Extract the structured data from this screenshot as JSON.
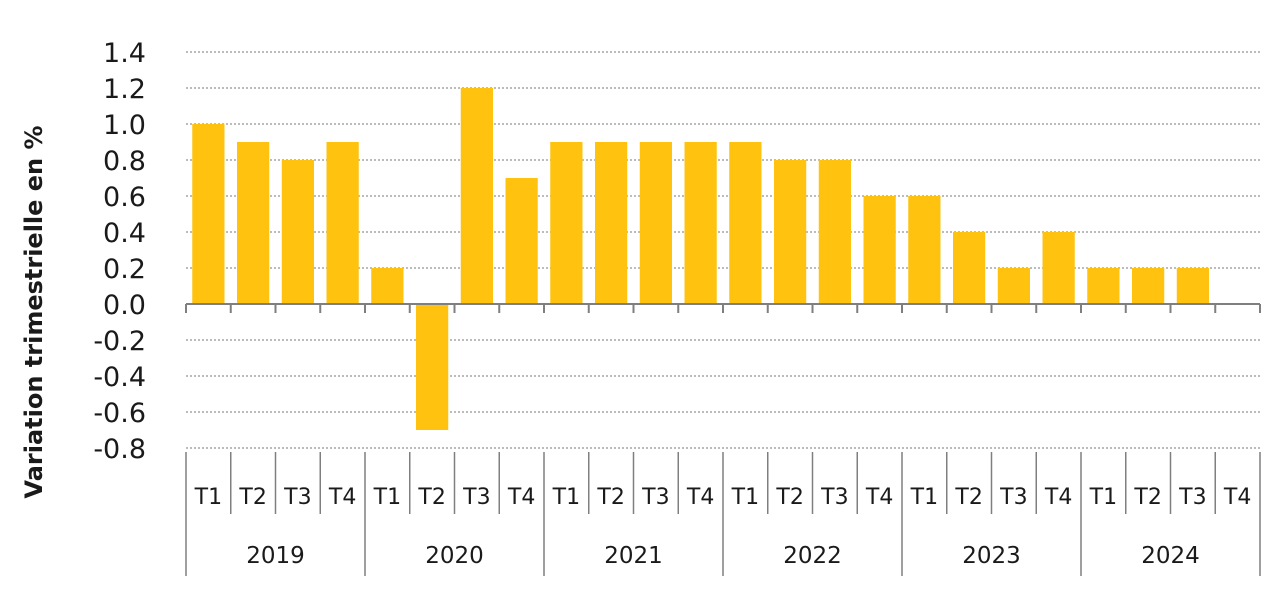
{
  "chart_data": {
    "type": "bar",
    "title": "",
    "xlabel": "",
    "ylabel": "Variation trimestrielle en %",
    "ylim": [
      -0.8,
      1.4
    ],
    "ytick_step": 0.2,
    "grid": true,
    "bar_color": "#FFC20E",
    "grid_color": "#A6A6A6",
    "axis_color": "#7F7F7F",
    "groups": [
      {
        "label": "2019",
        "quarters": [
          "T1",
          "T2",
          "T3",
          "T4"
        ],
        "values": [
          1.0,
          0.9,
          0.8,
          0.9
        ]
      },
      {
        "label": "2020",
        "quarters": [
          "T1",
          "T2",
          "T3",
          "T4"
        ],
        "values": [
          0.2,
          -0.7,
          1.2,
          0.7
        ]
      },
      {
        "label": "2021",
        "quarters": [
          "T1",
          "T2",
          "T3",
          "T4"
        ],
        "values": [
          0.9,
          0.9,
          0.9,
          0.9
        ]
      },
      {
        "label": "2022",
        "quarters": [
          "T1",
          "T2",
          "T3",
          "T4"
        ],
        "values": [
          0.9,
          0.8,
          0.8,
          0.6
        ]
      },
      {
        "label": "2023",
        "quarters": [
          "T1",
          "T2",
          "T3",
          "T4"
        ],
        "values": [
          0.6,
          0.4,
          0.2,
          0.4
        ]
      },
      {
        "label": "2024",
        "quarters": [
          "T1",
          "T2",
          "T3",
          "T4"
        ],
        "values": [
          0.2,
          0.2,
          0.2,
          null
        ]
      }
    ]
  }
}
